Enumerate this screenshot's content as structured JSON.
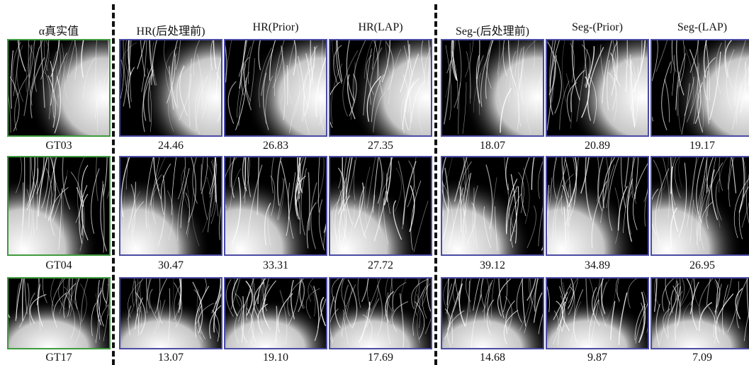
{
  "columns": [
    "α真实值",
    "HR(后处理前)",
    "HR(Prior)",
    "HR(LAP)",
    "Seg-(后处理前)",
    "Seg-(Prior)",
    "Seg-(LAP)"
  ],
  "rows": [
    {
      "label": "GT03",
      "scores": [
        "24.46",
        "26.83",
        "27.35",
        "18.07",
        "20.89",
        "19.17"
      ]
    },
    {
      "label": "GT04",
      "scores": [
        "30.47",
        "33.31",
        "27.72",
        "39.12",
        "34.89",
        "26.95"
      ]
    },
    {
      "label": "GT17",
      "scores": [
        "13.07",
        "19.10",
        "17.69",
        "14.68",
        "9.87",
        "7.09"
      ]
    }
  ]
}
